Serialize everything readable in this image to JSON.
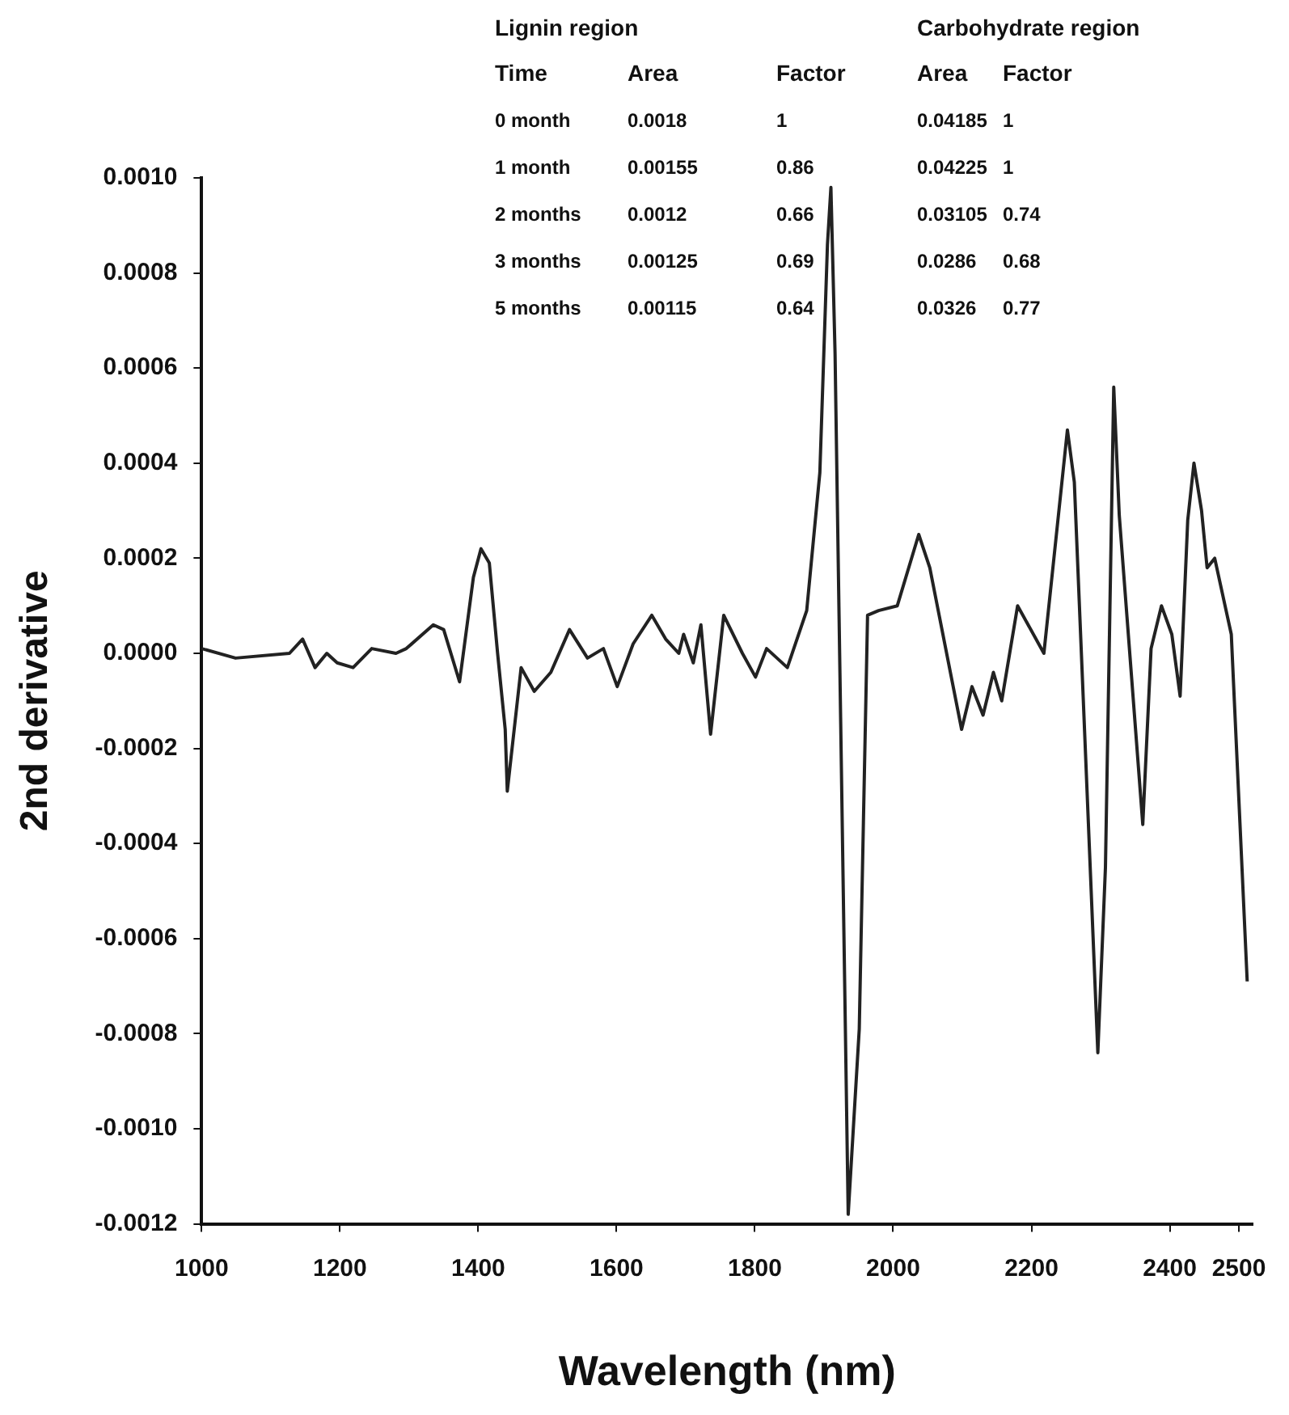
{
  "chart_data": {
    "type": "line",
    "xlabel": "Wavelength (nm)",
    "ylabel": "2nd derivative",
    "grid": false,
    "annotations": [
      "Lignin region",
      "Carbohydrate region",
      "Time",
      "Area",
      "Factor",
      "Area",
      "Factor",
      "0 month",
      "0.0018",
      "1",
      "0.04185",
      "1",
      "1 month",
      "0.00155",
      "0.86",
      "0.04225",
      "1",
      "2 months",
      "0.0012",
      "0.66",
      "0.03105",
      "0.74",
      "3 months",
      "0.00125",
      "0.69",
      "0.0286",
      "0.68",
      "5 months",
      "0.00115",
      "0.64",
      "0.0326",
      "0.77"
    ],
    "xlim": [
      1000,
      2520
    ],
    "xticks": [
      1000,
      1200,
      1400,
      1600,
      1800,
      2000,
      2200,
      2400,
      2500
    ],
    "ylim": [
      -0.0012,
      0.001
    ],
    "yticks": [
      {
        "value": 0.001,
        "label": "0.0010"
      },
      {
        "value": 0.0008,
        "label": "0.0008"
      },
      {
        "value": 0.0006,
        "label": "0.0006"
      },
      {
        "value": 0.0004,
        "label": "0.0004"
      },
      {
        "value": 0.0002,
        "label": "0.0002"
      },
      {
        "value": 0,
        "label": "0.0000"
      },
      {
        "value": -0.0002,
        "label": "-0.0002"
      },
      {
        "value": -0.0004,
        "label": "-0.0004"
      },
      {
        "value": -0.0006,
        "label": "-0.0006"
      },
      {
        "value": -0.0008,
        "label": "-0.0008"
      },
      {
        "value": -0.001,
        "label": "-0.0010"
      },
      {
        "value": -0.0012,
        "label": "-0.0012"
      }
    ],
    "x": [
      1000,
      1049,
      1127,
      1146,
      1164,
      1181,
      1196,
      1219,
      1246,
      1281,
      1296,
      1335,
      1350,
      1373,
      1393,
      1404,
      1416,
      1428,
      1439,
      1442,
      1462,
      1481,
      1505,
      1532,
      1558,
      1581,
      1601,
      1624,
      1651,
      1671,
      1690,
      1697,
      1711,
      1722,
      1736,
      1755,
      1782,
      1801,
      1817,
      1847,
      1875,
      1894,
      1905,
      1910,
      1916,
      1935,
      1951,
      1963,
      1979,
      2006,
      2037,
      2053,
      2099,
      2114,
      2130,
      2145,
      2157,
      2180,
      2218,
      2252,
      2262,
      2296,
      2307,
      2319,
      2327,
      2361,
      2373,
      2388,
      2403,
      2415,
      2426,
      2435,
      2446,
      2454,
      2465,
      2489,
      2512
    ],
    "series": [
      {
        "color": "#222222",
        "values": [
          1e-05,
          -1e-05,
          0,
          3e-05,
          -3e-05,
          0,
          -2e-05,
          -3e-05,
          1e-05,
          0,
          1e-05,
          6e-05,
          5e-05,
          -6e-05,
          0.00016,
          0.00022,
          0.00019,
          0,
          -0.00016,
          -0.00029,
          -3e-05,
          -8e-05,
          -4e-05,
          5e-05,
          -1e-05,
          1e-05,
          -7e-05,
          2e-05,
          8e-05,
          3e-05,
          0,
          4e-05,
          -2e-05,
          6e-05,
          -0.00017,
          8e-05,
          0,
          -5e-05,
          1e-05,
          -3e-05,
          9e-05,
          0.00038,
          0.00086,
          0.00098,
          0.00063,
          -0.00118,
          -0.00079,
          8e-05,
          9e-05,
          0.0001,
          0.00025,
          0.00018,
          -0.00016,
          -7e-05,
          -0.00013,
          -4e-05,
          -0.0001,
          0.0001,
          0,
          0.00047,
          0.00036,
          -0.00084,
          -0.00045,
          0.00056,
          0.00029,
          -0.00036,
          1e-05,
          0.0001,
          4e-05,
          -9e-05,
          0.00028,
          0.0004,
          0.0003,
          0.00018,
          0.0002,
          4e-05,
          -0.00069
        ]
      }
    ]
  }
}
